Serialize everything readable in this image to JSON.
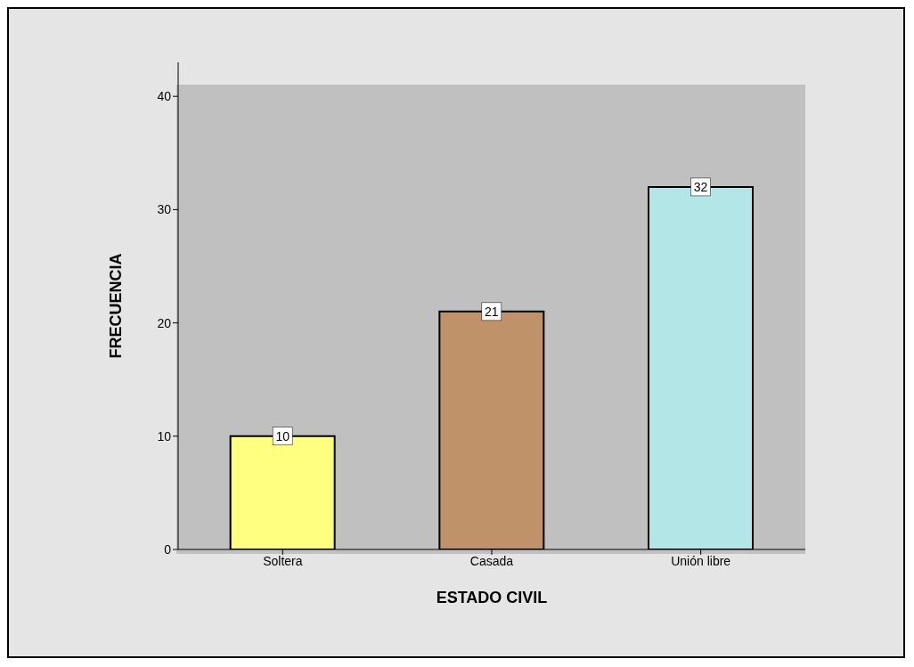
{
  "chart_data": {
    "type": "bar",
    "xlabel": "ESTADO CIVIL",
    "ylabel": "FRECUENCIA",
    "categories": [
      "Soltera",
      "Casada",
      "Unión libre"
    ],
    "values": [
      10,
      21,
      32
    ],
    "colors": [
      "#ffff80",
      "#c0926a",
      "#b3e6e6"
    ],
    "ylim": [
      0,
      43
    ],
    "yticks": [
      0,
      10,
      20,
      30,
      40
    ],
    "data_labels": true
  }
}
